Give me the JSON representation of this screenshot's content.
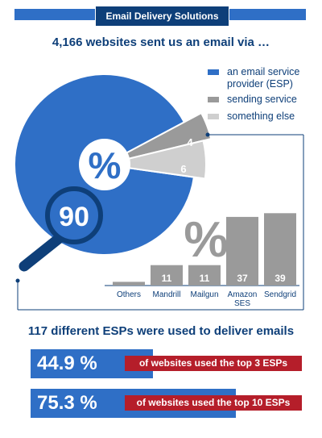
{
  "header": {
    "title": "Email Delivery Solutions"
  },
  "subtitle": "4,166 websites sent us an email via …",
  "colors": {
    "esp": "#2f6fc6",
    "sending_service": "#9a9a9a",
    "something_else": "#cfcfcf",
    "navy": "#0e3f79",
    "red": "#b51e2a"
  },
  "legend": [
    {
      "label": "an email service provider (ESP)",
      "color": "#2f6fc6"
    },
    {
      "label": "sending service",
      "color": "#9a9a9a"
    },
    {
      "label": "something else",
      "color": "#cfcfcf"
    }
  ],
  "pie": {
    "center_symbol": "%",
    "magnifier_value": "90",
    "sending_label": "4",
    "else_label": "6"
  },
  "bar_symbol": "%",
  "chart_data": [
    {
      "type": "pie",
      "categories": [
        "an email service provider (ESP)",
        "sending service",
        "something else"
      ],
      "values": [
        90,
        4,
        6
      ],
      "unit": "%"
    },
    {
      "type": "bar",
      "categories": [
        "Others",
        "Mandrill",
        "Mailgun",
        "Amazon SES",
        "Sendgrid"
      ],
      "values": [
        2,
        11,
        11,
        37,
        39
      ],
      "value_labels": [
        "",
        "11",
        "11",
        "37",
        "39"
      ],
      "unit": "%",
      "ylim": [
        0,
        40
      ]
    }
  ],
  "esp_panel": {
    "title": "117 different ESPs were used to deliver emails",
    "stats": [
      {
        "value": "44.9 %",
        "fraction": 0.449,
        "label": "of websites used the top 3 ESPs"
      },
      {
        "value": "75.3 %",
        "fraction": 0.753,
        "label": "of websites used the top 10 ESPs"
      }
    ]
  }
}
